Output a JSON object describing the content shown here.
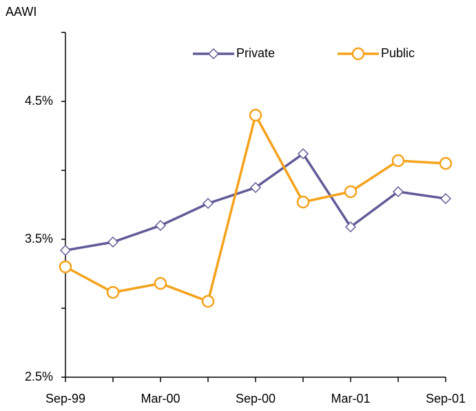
{
  "chart_data": {
    "type": "line",
    "ylabel": "AAWI",
    "categories": [
      "Sep-99",
      null,
      "Mar-00",
      null,
      "Sep-00",
      null,
      "Mar-01",
      null,
      "Sep-01"
    ],
    "series": [
      {
        "name": "Private",
        "color": "#5f5b97",
        "marker": "diamond",
        "values": [
          3.42,
          3.48,
          3.6,
          3.76,
          3.875,
          4.12,
          3.59,
          3.845,
          3.795
        ]
      },
      {
        "name": "Public",
        "color": "#f5a21b",
        "marker": "circle",
        "values": [
          3.3,
          3.115,
          3.18,
          3.05,
          4.4,
          3.77,
          3.845,
          4.07,
          4.05
        ]
      }
    ],
    "ylim": [
      2.5,
      5.0
    ],
    "yticks": [
      {
        "value": 2.5,
        "label": "2.5%"
      },
      {
        "value": 3.5,
        "label": "3.5%"
      },
      {
        "value": 4.5,
        "label": "4.5%"
      }
    ],
    "yminorticks": [
      3.0,
      4.0,
      5.0
    ],
    "legend": "top"
  }
}
